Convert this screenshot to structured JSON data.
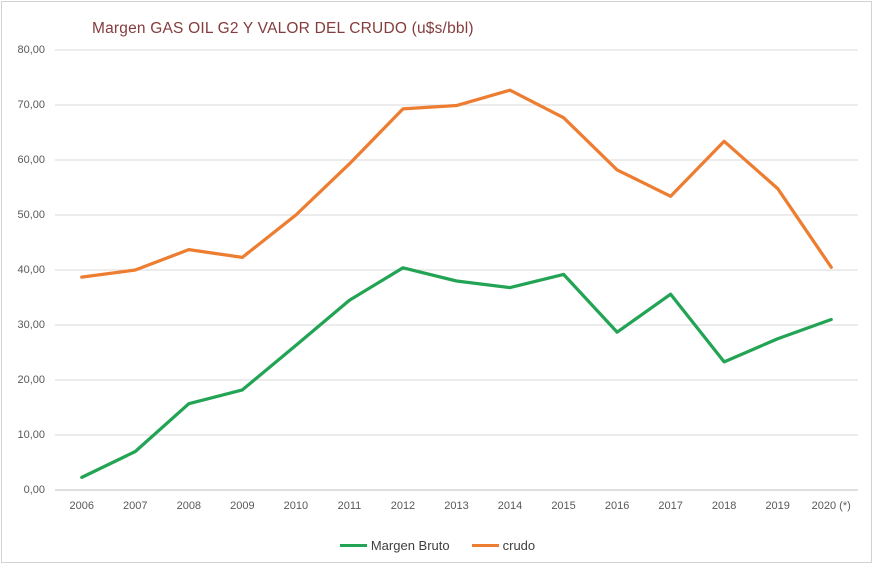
{
  "chart_data": {
    "type": "line",
    "title": "Margen GAS OIL G2 Y VALOR DEL CRUDO (u$s/bbl)",
    "categories": [
      "2006",
      "2007",
      "2008",
      "2009",
      "2010",
      "2011",
      "2012",
      "2013",
      "2014",
      "2015",
      "2016",
      "2017",
      "2018",
      "2019",
      "2020 (*)"
    ],
    "series": [
      {
        "name": "Margen Bruto",
        "color": "#23a455",
        "values": [
          2.3,
          7.0,
          15.7,
          18.2,
          26.3,
          34.5,
          40.4,
          38.0,
          36.8,
          39.2,
          28.7,
          35.6,
          23.3,
          27.5,
          31.0
        ]
      },
      {
        "name": "crudo",
        "color": "#ed7d31",
        "values": [
          38.7,
          40.0,
          43.7,
          42.3,
          50.0,
          59.3,
          69.3,
          69.9,
          72.7,
          67.7,
          58.2,
          53.4,
          63.4,
          54.8,
          40.5
        ]
      }
    ],
    "ylim": [
      0,
      80
    ],
    "ytick_labels": [
      "80,00",
      "70,00",
      "60,00",
      "50,00",
      "40,00",
      "30,00",
      "20,00",
      "10,00",
      "0,00"
    ],
    "grid": true,
    "legend_position": "bottom"
  },
  "styles": {
    "title_color": "#843c3c",
    "axis_text_color": "#595959",
    "gridline_color": "#d9d9d9",
    "axis_line_color": "#bfbfbf",
    "frame_border_color": "#d2d2d2",
    "line_width": 3.25
  }
}
